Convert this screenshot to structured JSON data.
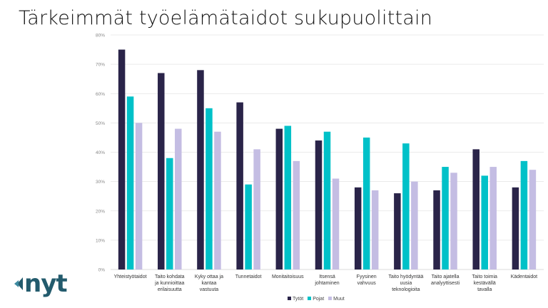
{
  "chart_data": {
    "type": "bar",
    "title": "Tärkeimmät työelämätaidot sukupuolittain",
    "categories": [
      "Yhteistyötaidot",
      "Taito kohdata ja kunnioittaa erilaisuutta",
      "Kyky ottaa ja kantaa vastuuta",
      "Tunnetaidot",
      "Monitaitoisuus",
      "Itsensä johtaminen",
      "Fyysinen vahvuus",
      "Taito hyödyntää uusia teknologioita",
      "Taito ajatella analyyttisesti",
      "Taito toimia kestävällä tavalla",
      "Kädentaidot"
    ],
    "category_lines": [
      [
        "Yhteistyötaidot"
      ],
      [
        "Taito kohdata",
        "ja kunnioittaa",
        "erilaisuutta"
      ],
      [
        "Kyky ottaa ja",
        "kantaa",
        "vastuuta"
      ],
      [
        "Tunnetaidot"
      ],
      [
        "Monitaitoisuus"
      ],
      [
        "Itsensä",
        "johtaminen"
      ],
      [
        "Fyysinen",
        "vahvuus"
      ],
      [
        "Taito hyödyntää",
        "uusia",
        "teknologioita"
      ],
      [
        "Taito ajatella",
        "analyyttisesti"
      ],
      [
        "Taito toimia",
        "kestävällä",
        "tavalla"
      ],
      [
        "Kädentaidot"
      ]
    ],
    "series": [
      {
        "name": "Tytöt",
        "color": "#2a2449",
        "values": [
          75,
          67,
          68,
          57,
          48,
          44,
          28,
          26,
          27,
          41,
          28
        ]
      },
      {
        "name": "Pojat",
        "color": "#00c1c8",
        "values": [
          59,
          38,
          55,
          29,
          49,
          47,
          45,
          43,
          35,
          32,
          37
        ]
      },
      {
        "name": "Muut",
        "color": "#c4bde3",
        "values": [
          50,
          48,
          47,
          41,
          37,
          31,
          27,
          30,
          33,
          35,
          34
        ]
      }
    ],
    "ylim": [
      0,
      80
    ],
    "yticks": [
      "0%",
      "10%",
      "20%",
      "30%",
      "40%",
      "50%",
      "60%",
      "70%",
      "80%"
    ],
    "grid": true,
    "legend": "bottom"
  },
  "logo": {
    "text": "nyt",
    "color": "#235b6d"
  }
}
